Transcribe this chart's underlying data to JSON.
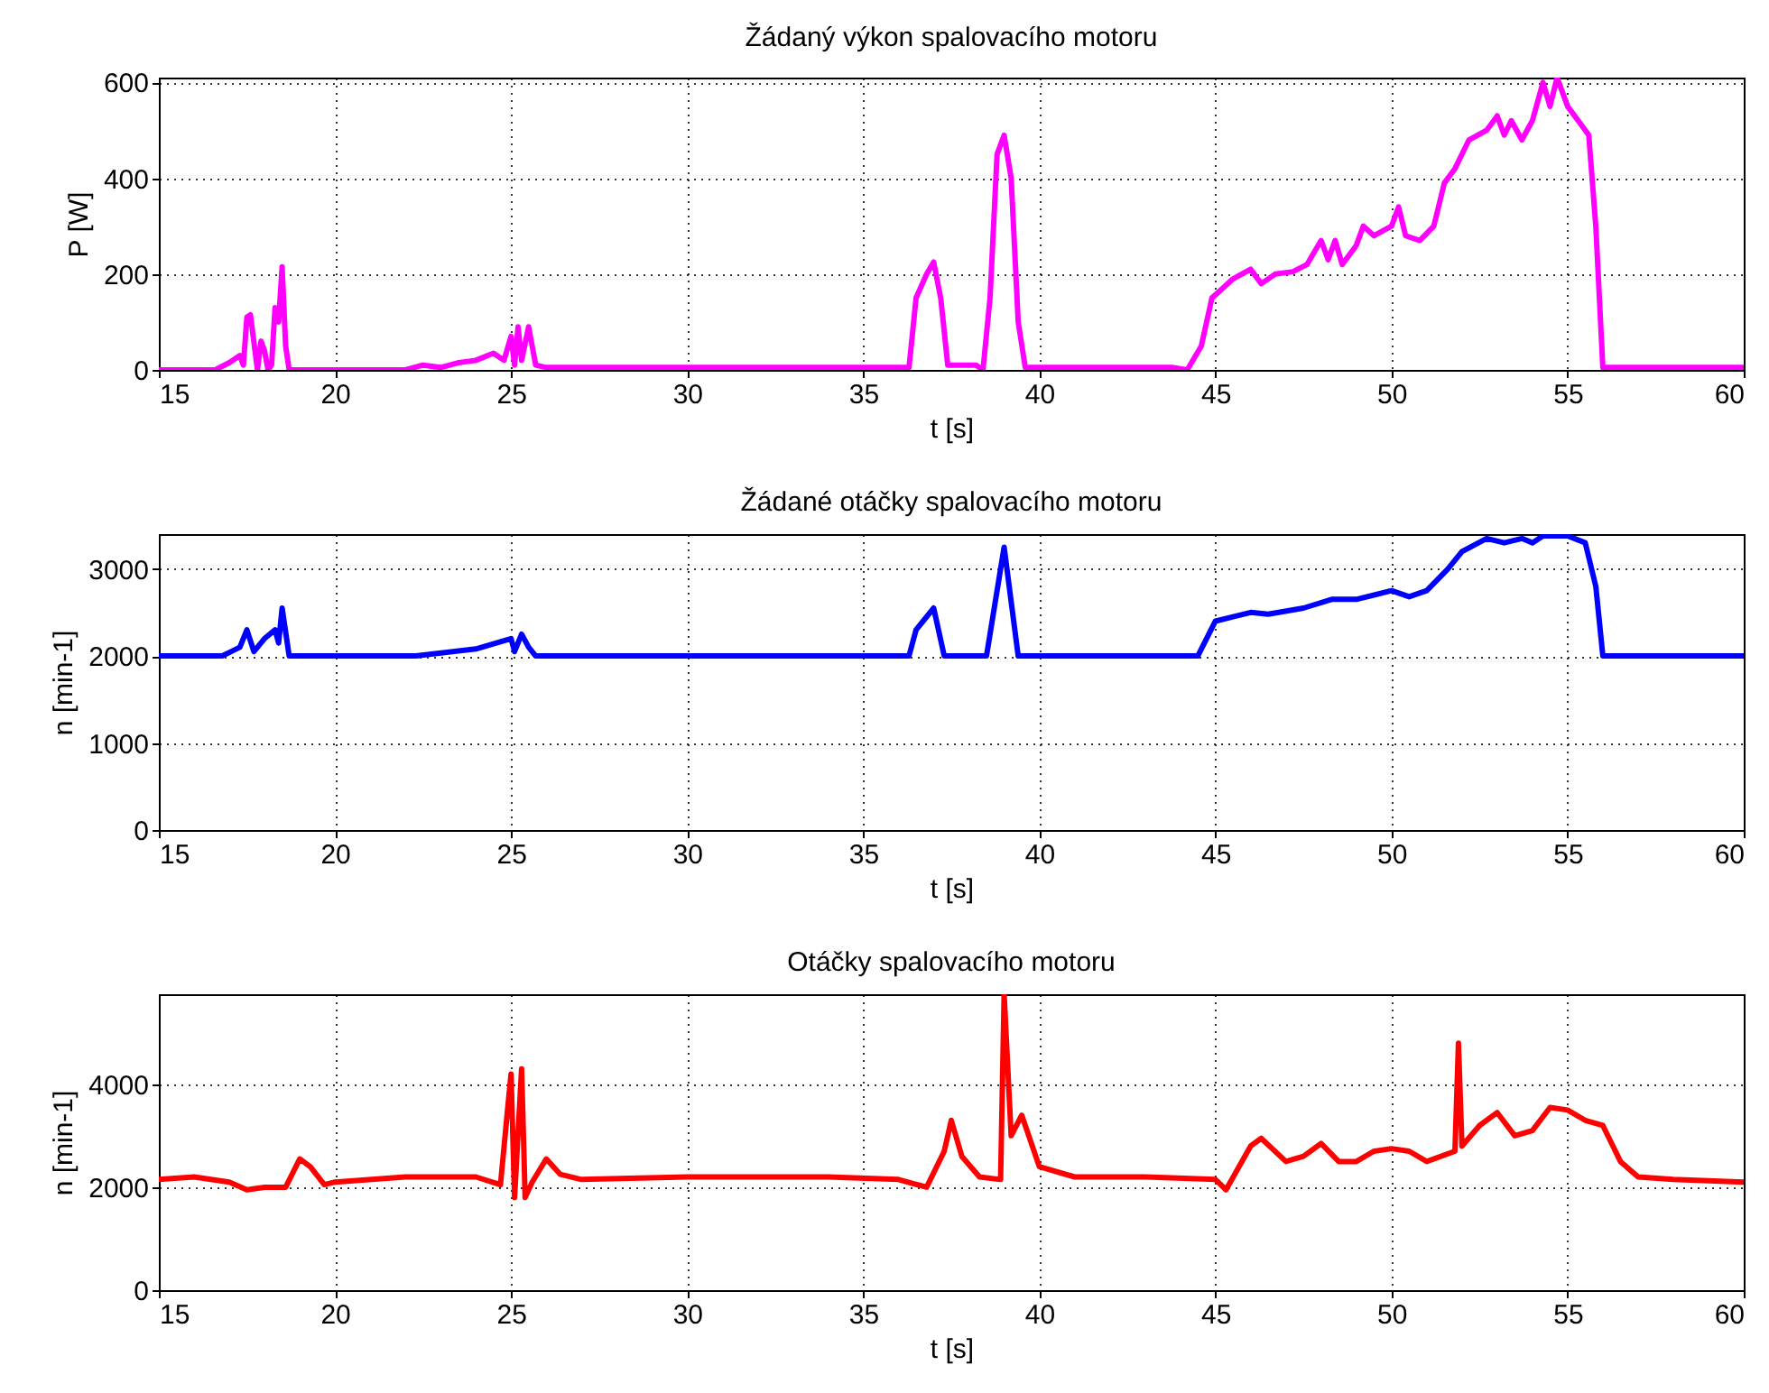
{
  "chart_data": [
    {
      "type": "line",
      "title": "Žádaný výkon spalovacího motoru",
      "xlabel": "t [s]",
      "ylabel": "P [W]",
      "color": "#ff00ff",
      "grid": true,
      "xlim": [
        15,
        60
      ],
      "ylim": [
        0,
        610
      ],
      "xticks": [
        15,
        20,
        25,
        30,
        35,
        40,
        45,
        50,
        55,
        60
      ],
      "yticks": [
        0,
        200,
        400,
        600
      ],
      "x": [
        15,
        16.6,
        17.0,
        17.3,
        17.4,
        17.5,
        17.6,
        17.8,
        17.9,
        18.0,
        18.1,
        18.2,
        18.3,
        18.4,
        18.5,
        18.6,
        18.7,
        22.0,
        22.5,
        23.0,
        23.5,
        24.0,
        24.5,
        24.8,
        25.0,
        25.1,
        25.2,
        25.3,
        25.5,
        25.7,
        26.0,
        36.3,
        36.5,
        36.8,
        37.0,
        37.2,
        37.4,
        38.2,
        38.4,
        38.6,
        38.8,
        39.0,
        39.2,
        39.4,
        39.6,
        43.8,
        44.2,
        44.6,
        44.9,
        45.2,
        45.5,
        46.0,
        46.3,
        46.7,
        47.2,
        47.6,
        48.0,
        48.2,
        48.4,
        48.6,
        49.0,
        49.2,
        49.5,
        50.0,
        50.2,
        50.4,
        50.8,
        51.2,
        51.5,
        51.8,
        52.2,
        52.7,
        53.0,
        53.2,
        53.4,
        53.7,
        54.0,
        54.3,
        54.5,
        54.7,
        55.0,
        55.3,
        55.6,
        55.8,
        56.0,
        60
      ],
      "values": [
        0,
        0,
        15,
        30,
        10,
        110,
        115,
        0,
        60,
        40,
        0,
        10,
        130,
        100,
        215,
        50,
        0,
        0,
        10,
        5,
        15,
        20,
        35,
        20,
        70,
        10,
        90,
        20,
        90,
        10,
        5,
        5,
        150,
        200,
        225,
        150,
        10,
        10,
        0,
        150,
        450,
        490,
        400,
        100,
        5,
        5,
        0,
        50,
        150,
        170,
        190,
        210,
        180,
        200,
        205,
        220,
        270,
        230,
        270,
        220,
        260,
        300,
        280,
        300,
        340,
        280,
        270,
        300,
        390,
        420,
        480,
        500,
        530,
        490,
        520,
        480,
        520,
        600,
        550,
        610,
        550,
        520,
        490,
        300,
        5,
        5
      ]
    },
    {
      "type": "line",
      "title": "Žádané otáčky spalovacího motoru",
      "xlabel": "t [s]",
      "ylabel": "n [min-1]",
      "color": "#0000ff",
      "grid": true,
      "xlim": [
        15,
        60
      ],
      "ylim": [
        0,
        3400
      ],
      "xticks": [
        15,
        20,
        25,
        30,
        35,
        40,
        45,
        50,
        55,
        60
      ],
      "yticks": [
        0,
        1000,
        2000,
        3000
      ],
      "x": [
        15,
        16.8,
        17.3,
        17.5,
        17.7,
        18.0,
        18.3,
        18.4,
        18.5,
        18.7,
        22.3,
        24.0,
        25.0,
        25.1,
        25.3,
        25.5,
        25.7,
        36.3,
        36.5,
        37.0,
        37.3,
        38.5,
        39.0,
        39.4,
        44.5,
        45.0,
        45.5,
        46.0,
        46.5,
        47.5,
        48.3,
        49.0,
        50.0,
        50.5,
        51.0,
        51.6,
        52.0,
        52.7,
        53.2,
        53.7,
        54.0,
        54.3,
        55.0,
        55.5,
        55.8,
        56.0,
        60
      ],
      "values": [
        2000,
        2000,
        2100,
        2300,
        2050,
        2200,
        2300,
        2150,
        2550,
        2000,
        2000,
        2080,
        2200,
        2050,
        2250,
        2100,
        2000,
        2000,
        2300,
        2550,
        2000,
        2000,
        3250,
        2000,
        2000,
        2400,
        2450,
        2500,
        2480,
        2550,
        2650,
        2650,
        2750,
        2680,
        2750,
        3000,
        3200,
        3350,
        3300,
        3350,
        3300,
        3380,
        3380,
        3300,
        2800,
        2000,
        2000
      ]
    },
    {
      "type": "line",
      "title": "Otáčky spalovacího motoru",
      "xlabel": "t [s]",
      "ylabel": "n [min-1]",
      "color": "#ff0000",
      "grid": true,
      "xlim": [
        15,
        60
      ],
      "ylim": [
        0,
        5750
      ],
      "xticks": [
        15,
        20,
        25,
        30,
        35,
        40,
        45,
        50,
        55,
        60
      ],
      "yticks": [
        0,
        2000,
        4000
      ],
      "x": [
        15,
        16,
        17,
        17.5,
        18,
        18.6,
        19.0,
        19.3,
        19.7,
        20,
        22,
        24,
        24.7,
        24.9,
        25.0,
        25.1,
        25.3,
        25.4,
        25.6,
        26,
        26.4,
        27,
        30,
        32,
        34,
        36,
        36.8,
        37.3,
        37.5,
        37.8,
        38.3,
        38.9,
        39.0,
        39.2,
        39.5,
        40,
        41,
        43,
        45,
        45.3,
        46,
        46.3,
        47,
        47.5,
        48,
        48.5,
        49,
        49.5,
        50,
        50.5,
        51,
        51.8,
        51.9,
        52,
        52.5,
        53,
        53.5,
        54,
        54.5,
        55,
        55.5,
        56,
        56.5,
        57,
        58,
        60
      ],
      "values": [
        2150,
        2200,
        2100,
        1950,
        2000,
        2000,
        2550,
        2400,
        2050,
        2100,
        2200,
        2200,
        2050,
        3500,
        4200,
        1800,
        4300,
        1800,
        2100,
        2550,
        2250,
        2150,
        2200,
        2200,
        2200,
        2150,
        2000,
        2700,
        3300,
        2600,
        2200,
        2150,
        5750,
        3000,
        3400,
        2400,
        2200,
        2200,
        2150,
        1950,
        2800,
        2950,
        2500,
        2600,
        2850,
        2500,
        2500,
        2700,
        2750,
        2700,
        2500,
        2700,
        4800,
        2800,
        3200,
        3450,
        3000,
        3100,
        3550,
        3500,
        3300,
        3200,
        2500,
        2200,
        2150,
        2100
      ]
    }
  ]
}
